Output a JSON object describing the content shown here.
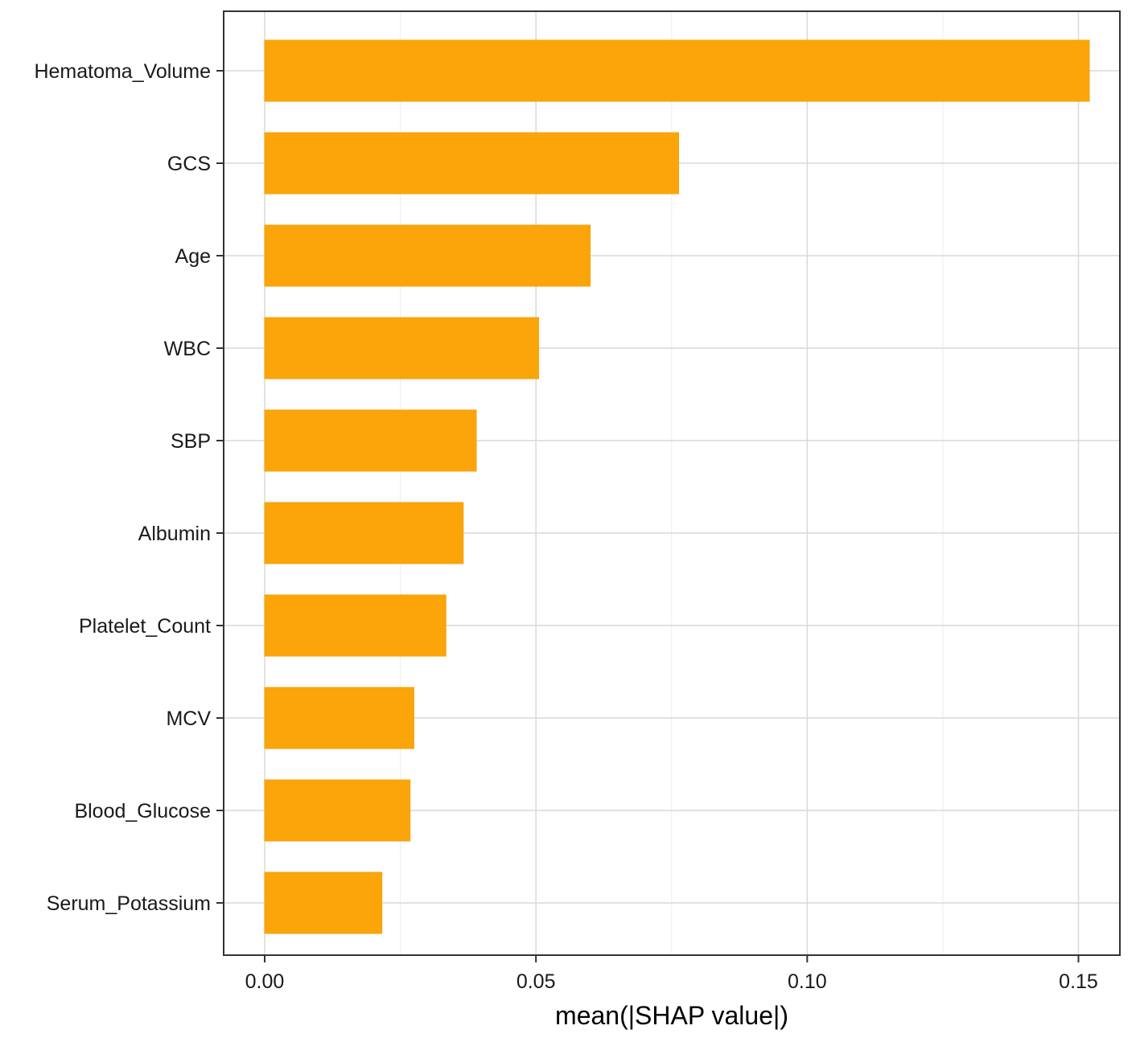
{
  "chart_data": {
    "type": "bar",
    "orientation": "horizontal",
    "categories": [
      "Hematoma_Volume",
      "GCS",
      "Age",
      "WBC",
      "SBP",
      "Albumin",
      "Platelet_Count",
      "MCV",
      "Blood_Glucose",
      "Serum_Potassium"
    ],
    "values": [
      0.152,
      0.0763,
      0.06,
      0.0505,
      0.039,
      0.0366,
      0.0334,
      0.0275,
      0.0268,
      0.0216
    ],
    "title": "",
    "xlabel": "mean(|SHAP value|)",
    "ylabel": "",
    "xlim": [
      -0.0075,
      0.1545
    ],
    "x_ticks": [
      0.0,
      0.05,
      0.1,
      0.15
    ],
    "x_tick_labels": [
      "0.00",
      "0.05",
      "0.10",
      "0.15"
    ],
    "grid": true,
    "legend": "none",
    "bar_color": "#FBA50A",
    "bar_border_color": "#F3A20E",
    "panel_border_color": "#333333",
    "grid_color": "#D9D9D9"
  }
}
